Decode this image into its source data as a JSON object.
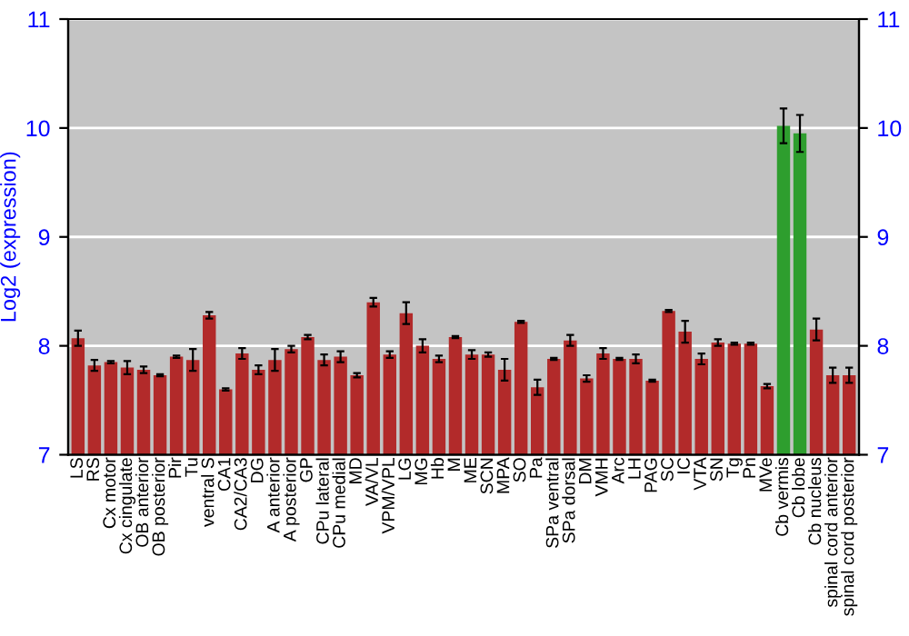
{
  "chart_data": {
    "type": "bar",
    "ylabel": "Log2 (expression)",
    "categories": [
      "LS",
      "RS",
      "Cx motor",
      "Cx cingulate",
      "OB anterior",
      "OB posterior",
      "Pir",
      "Tu",
      "ventral S",
      "CA1",
      "CA2/CA3",
      "DG",
      "A anterior",
      "A posterior",
      "GP",
      "CPu lateral",
      "CPu medial",
      "MD",
      "VA/VL",
      "VPM/VPL",
      "LG",
      "MG",
      "Hb",
      "M",
      "ME",
      "SCN",
      "MPA",
      "SO",
      "Pa",
      "SPa ventral",
      "SPa dorsal",
      "DM",
      "VMH",
      "Arc",
      "LH",
      "PAG",
      "SC",
      "IC",
      "VTA",
      "SN",
      "Tg",
      "Pn",
      "MVe",
      "Cb vermis",
      "Cb lobe",
      "Cb nucleus",
      "spinal cord anterior",
      "spinal cord posterior"
    ],
    "values": [
      8.07,
      7.82,
      7.85,
      7.8,
      7.78,
      7.73,
      7.9,
      7.87,
      8.28,
      7.6,
      7.93,
      7.78,
      7.87,
      7.97,
      8.08,
      7.87,
      7.9,
      7.73,
      8.4,
      7.92,
      8.3,
      8.0,
      7.88,
      8.08,
      7.92,
      7.92,
      7.78,
      8.22,
      7.62,
      7.88,
      8.05,
      7.7,
      7.93,
      7.88,
      7.88,
      7.68,
      8.32,
      8.13,
      7.88,
      8.03,
      8.02,
      8.02,
      7.63,
      10.02,
      9.95,
      8.15,
      7.73,
      7.73
    ],
    "errors": [
      0.07,
      0.05,
      0.01,
      0.06,
      0.03,
      0.01,
      0.01,
      0.1,
      0.03,
      0.01,
      0.05,
      0.04,
      0.1,
      0.03,
      0.02,
      0.05,
      0.05,
      0.02,
      0.04,
      0.03,
      0.1,
      0.06,
      0.03,
      0.01,
      0.04,
      0.02,
      0.1,
      0.01,
      0.07,
      0.01,
      0.05,
      0.03,
      0.05,
      0.01,
      0.04,
      0.01,
      0.01,
      0.1,
      0.05,
      0.03,
      0.01,
      0.01,
      0.02,
      0.16,
      0.17,
      0.1,
      0.07,
      0.07
    ],
    "colors": [
      "#b22a2a",
      "#b22a2a",
      "#b22a2a",
      "#b22a2a",
      "#b22a2a",
      "#b22a2a",
      "#b22a2a",
      "#b22a2a",
      "#b22a2a",
      "#b22a2a",
      "#b22a2a",
      "#b22a2a",
      "#b22a2a",
      "#b22a2a",
      "#b22a2a",
      "#b22a2a",
      "#b22a2a",
      "#b22a2a",
      "#b22a2a",
      "#b22a2a",
      "#b22a2a",
      "#b22a2a",
      "#b22a2a",
      "#b22a2a",
      "#b22a2a",
      "#b22a2a",
      "#b22a2a",
      "#b22a2a",
      "#b22a2a",
      "#b22a2a",
      "#b22a2a",
      "#b22a2a",
      "#b22a2a",
      "#b22a2a",
      "#b22a2a",
      "#b22a2a",
      "#b22a2a",
      "#b22a2a",
      "#b22a2a",
      "#b22a2a",
      "#b22a2a",
      "#b22a2a",
      "#b22a2a",
      "#2e9e2e",
      "#2e9e2e",
      "#b22a2a",
      "#b22a2a",
      "#b22a2a"
    ],
    "ylim": [
      7,
      11
    ],
    "yticks": [
      7,
      8,
      9,
      10,
      11
    ],
    "y2lim": [
      7,
      11
    ],
    "y2ticks": [
      7,
      8,
      9,
      10,
      11
    ],
    "grid": "y"
  }
}
